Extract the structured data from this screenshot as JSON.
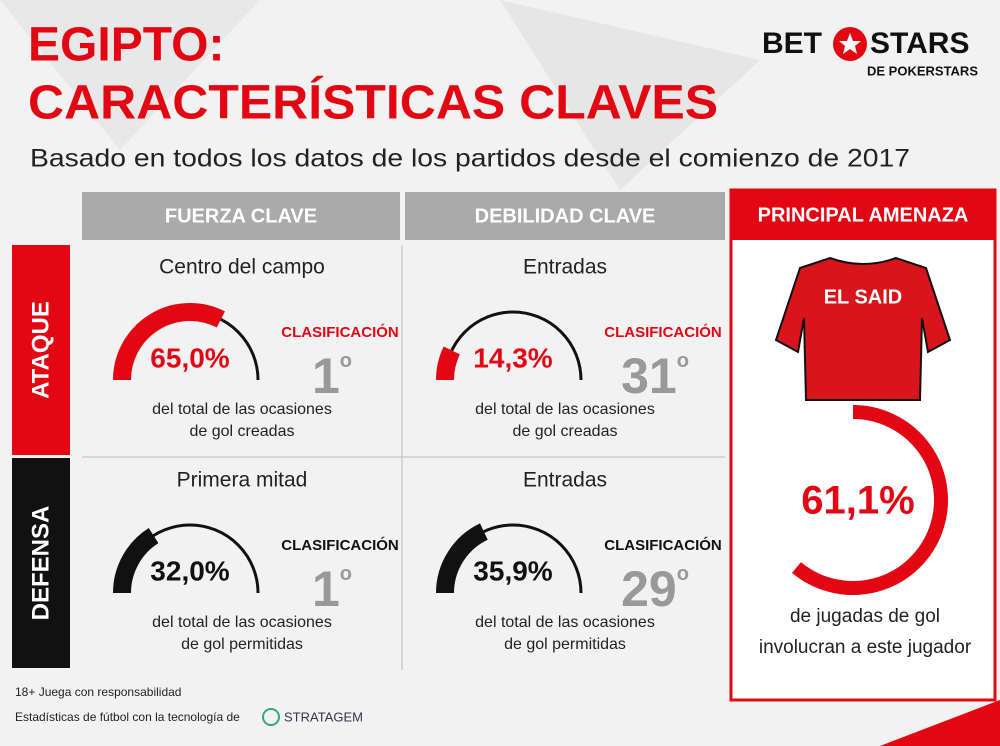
{
  "header": {
    "title_lines": [
      "EGIPTO:",
      "CARACTERÍSTICAS CLAVES"
    ],
    "subtitle": "Basado en todos los datos de los partidos desde el comienzo de 2017"
  },
  "logo": {
    "left": "BET",
    "right": "STARS",
    "sub": "DE POKERSTARS"
  },
  "grid": {
    "columns": [
      "FUERZA CLAVE",
      "DEBILIDAD CLAVE"
    ],
    "rows": [
      {
        "label": "ATAQUE",
        "color": "#e30613",
        "cells": [
          {
            "topic": "Centro del campo",
            "value": 65.0,
            "value_label": "65,0%",
            "rank_title": "CLASIFICACIÓN",
            "rank": "1",
            "rank_suffix": "o",
            "caption": [
              "del total de las ocasiones",
              "de gol creadas"
            ]
          },
          {
            "topic": "Entradas",
            "value": 14.3,
            "value_label": "14,3%",
            "rank_title": "CLASIFICACIÓN",
            "rank": "31",
            "rank_suffix": "o",
            "caption": [
              "del total de las ocasiones",
              "de gol creadas"
            ]
          }
        ]
      },
      {
        "label": "DEFENSA",
        "color": "#111111",
        "cells": [
          {
            "topic": "Primera mitad",
            "value": 32.0,
            "value_label": "32,0%",
            "rank_title": "CLASIFICACIÓN",
            "rank": "1",
            "rank_suffix": "o",
            "caption": [
              "del total de las ocasiones",
              "de gol permitidas"
            ]
          },
          {
            "topic": "Entradas",
            "value": 35.9,
            "value_label": "35,9%",
            "rank_title": "CLASIFICACIÓN",
            "rank": "29",
            "rank_suffix": "o",
            "caption": [
              "del total de las ocasiones",
              "de gol permitidas"
            ]
          }
        ]
      }
    ]
  },
  "threat": {
    "title": "PRINCIPAL AMENAZA",
    "player": "EL SAID",
    "value": 61.1,
    "value_label": "61,1%",
    "caption": [
      "de jugadas de gol",
      "involucran a este jugador"
    ]
  },
  "footer": {
    "responsible": "18+ Juega con responsabilidad",
    "tech": "Estadísticas de fútbol con la tecnología de",
    "partner": "STRATAGEM"
  }
}
